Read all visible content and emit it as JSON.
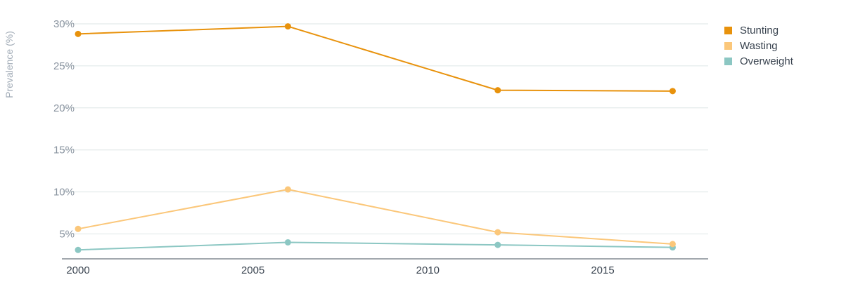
{
  "chart_data": {
    "type": "line",
    "title": "",
    "xlabel": "",
    "ylabel": "Prevalence (%)",
    "x": [
      2000,
      2006,
      2012,
      2017
    ],
    "xticks": [
      2000,
      2005,
      2010,
      2015
    ],
    "xtick_labels": [
      "2000",
      "2005",
      "2010",
      "2015"
    ],
    "xlim": [
      2000,
      2019
    ],
    "ylim": [
      2,
      30
    ],
    "yticks": [
      5,
      10,
      15,
      20,
      25,
      30
    ],
    "ytick_labels": [
      "5%",
      "10%",
      "15%",
      "20%",
      "25%",
      "30%"
    ],
    "grid": true,
    "legend_position": "top-right",
    "series": [
      {
        "name": "Stunting",
        "color": "#e8920c",
        "values": [
          28.8,
          29.7,
          22.1,
          22.0
        ]
      },
      {
        "name": "Wasting",
        "color": "#fbc77a",
        "values": [
          5.6,
          10.3,
          5.2,
          3.8
        ]
      },
      {
        "name": "Overweight",
        "color": "#8cc7c3",
        "values": [
          3.1,
          4.0,
          3.7,
          3.4
        ]
      }
    ]
  }
}
